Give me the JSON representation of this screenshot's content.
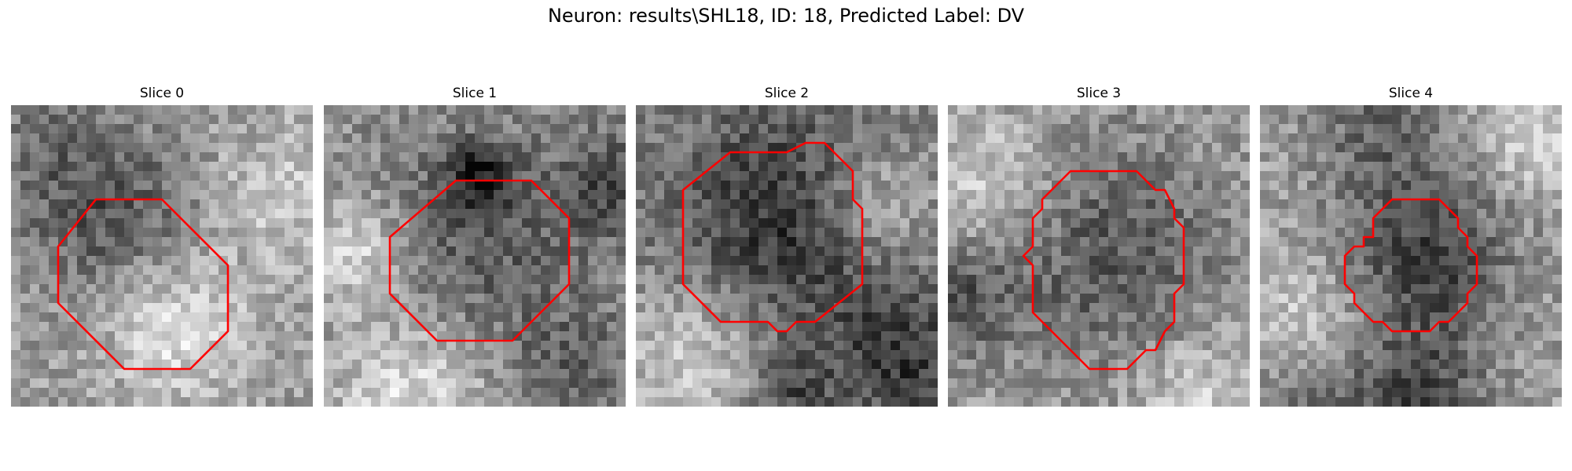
{
  "figure": {
    "title": "Neuron: results\\SHL18, ID: 18, Predicted Label: DV"
  },
  "slices": [
    {
      "label": "Slice 0"
    },
    {
      "label": "Slice 1"
    },
    {
      "label": "Slice 2"
    },
    {
      "label": "Slice 3"
    },
    {
      "label": "Slice 4"
    }
  ],
  "colors": {
    "contour": "#ff0000",
    "background": "#ffffff"
  }
}
